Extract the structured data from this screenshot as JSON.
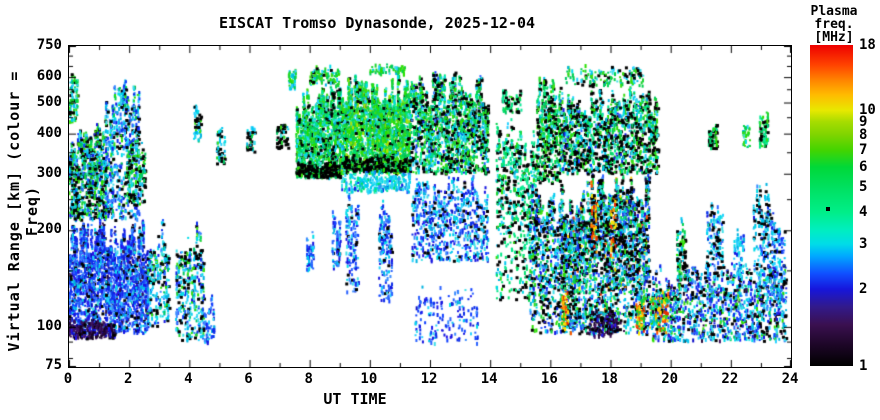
{
  "title": "EISCAT Tromso Dynasonde, 2025-12-04",
  "axes": {
    "xlabel": "UT TIME",
    "ylabel": "Virtual Range [km] (colour = Freq)",
    "x": {
      "min": 0,
      "max": 24,
      "major": [
        0,
        2,
        4,
        6,
        8,
        10,
        12,
        14,
        16,
        18,
        20,
        22,
        24
      ],
      "minor": [
        1,
        3,
        5,
        7,
        9,
        11,
        13,
        15,
        17,
        19,
        21,
        23
      ]
    },
    "y": {
      "min": 75,
      "max": 750,
      "scale": "log",
      "major": [
        750,
        600,
        500,
        400,
        300,
        200,
        100,
        75
      ],
      "minor": [
        80,
        90,
        150,
        250,
        350,
        450,
        550,
        650,
        700
      ]
    }
  },
  "colorbar": {
    "title_line1": "Plasma freq.",
    "title_line2": "[MHz]",
    "min": 1,
    "max": 18,
    "scale": "log",
    "ticks": [
      18,
      10,
      9,
      8,
      7,
      6,
      5,
      4,
      3,
      2,
      1
    ],
    "stops": [
      {
        "v": 1.0,
        "c": "#000000"
      },
      {
        "v": 1.2,
        "c": "#1c0626"
      },
      {
        "v": 1.45,
        "c": "#3a1050"
      },
      {
        "v": 1.7,
        "c": "#321a8a"
      },
      {
        "v": 2.0,
        "c": "#1616dc"
      },
      {
        "v": 2.3,
        "c": "#1050ff"
      },
      {
        "v": 2.7,
        "c": "#00aaff"
      },
      {
        "v": 3.0,
        "c": "#00dce8"
      },
      {
        "v": 3.4,
        "c": "#00eec0"
      },
      {
        "v": 4.0,
        "c": "#00ee88"
      },
      {
        "v": 5.0,
        "c": "#00e060"
      },
      {
        "v": 6.0,
        "c": "#00d838"
      },
      {
        "v": 7.0,
        "c": "#44d400"
      },
      {
        "v": 8.0,
        "c": "#7ed400"
      },
      {
        "v": 9.0,
        "c": "#a6dc00"
      },
      {
        "v": 10.0,
        "c": "#e8e800"
      },
      {
        "v": 11.5,
        "c": "#ffbb00"
      },
      {
        "v": 13.0,
        "c": "#ff8800"
      },
      {
        "v": 15.0,
        "c": "#ff4400"
      },
      {
        "v": 18.0,
        "c": "#ee0000"
      }
    ],
    "marker": {
      "v": 4.1,
      "color": "#000000"
    }
  },
  "chart_data": {
    "type": "scatter",
    "x_unit": "UT hours",
    "y_unit": "km virtual range (log scale 75-750)",
    "color_unit": "plasma frequency MHz (log scale 1-18)",
    "summary": [
      "Dense night-time E/F echoes 00-03 UT, 95-620 km, mostly 1.5-4 MHz (blue/cyan) with black overplot dots 200-430 km",
      "Sparse echoes 03-07 UT near 100-215 km and isolated patches 320-510 km",
      "Daytime F-layer green canopy (5-7 MHz) 07:30-11:20 UT between 290 and 660 km with black dot chain along 300-340 km lower edge",
      "Mixed green/cyan/black columns 11:20-16:20 UT, 100-630 km with blue lower fringe",
      "Very dense disturbed period 16:20-19:30 UT, 90-650 km, including orange/red patches (10-15 MHz) near 100-300 km",
      "Evening E-region band 19:30-23:50 UT at 90-160 km (blue/cyan) with sporadic cyan/green columns up to 480 km"
    ],
    "palettes": {
      "blue": [
        "#1616e0",
        "#1040ff",
        "#2a62ff",
        "#0b2ce8",
        "#3b8cff"
      ],
      "deepblue": [
        "#0d0dc8",
        "#2a14e8",
        "#1c1cf0"
      ],
      "cyan": [
        "#00c8f0",
        "#00dce8",
        "#28d2ff",
        "#00b4e0",
        "#40e0e8"
      ],
      "green": [
        "#00d24b",
        "#1ed433",
        "#3cdc14",
        "#00c862",
        "#28e000"
      ],
      "spring": [
        "#00e887",
        "#00e06e",
        "#10ea9a"
      ],
      "yellowgreen": [
        "#8ade00",
        "#b0e400"
      ],
      "warm": [
        "#ffd000",
        "#ff9800",
        "#ff5000",
        "#e82800",
        "#ffe800"
      ],
      "dark": [
        "#24063a",
        "#38104e",
        "#160422",
        "#401464"
      ],
      "black": [
        "#000000"
      ]
    },
    "clusters": [
      {
        "t": [
          0.0,
          2.65
        ],
        "r": [
          95,
          215
        ],
        "n": 2400,
        "mix": {
          "blue": 62,
          "cyan": 16,
          "deepblue": 10,
          "dark": 6,
          "black": 6
        }
      },
      {
        "t": [
          0.0,
          1.55
        ],
        "r": [
          92,
          106
        ],
        "n": 260,
        "mix": {
          "dark": 70,
          "deepblue": 20,
          "black": 10
        }
      },
      {
        "t": [
          0.0,
          1.25
        ],
        "r": [
          215,
          430
        ],
        "n": 850,
        "mix": {
          "green": 32,
          "cyan": 28,
          "black": 26,
          "blue": 14
        }
      },
      {
        "t": [
          0.0,
          0.3
        ],
        "r": [
          430,
          630
        ],
        "n": 90,
        "mix": {
          "green": 55,
          "cyan": 35,
          "black": 10
        }
      },
      {
        "t": [
          1.2,
          2.35
        ],
        "r": [
          215,
          620
        ],
        "n": 650,
        "mix": {
          "blue": 40,
          "cyan": 34,
          "black": 12,
          "green": 14
        }
      },
      {
        "t": [
          1.9,
          2.55
        ],
        "r": [
          240,
          390
        ],
        "n": 170,
        "mix": {
          "green": 40,
          "cyan": 25,
          "black": 35
        }
      },
      {
        "t": [
          2.6,
          3.35
        ],
        "r": [
          100,
          215
        ],
        "n": 260,
        "mix": {
          "cyan": 45,
          "black": 20,
          "blue": 20,
          "green": 15
        }
      },
      {
        "t": [
          3.55,
          4.5
        ],
        "r": [
          90,
          215
        ],
        "n": 360,
        "mix": {
          "cyan": 35,
          "green": 25,
          "black": 20,
          "blue": 20
        }
      },
      {
        "t": [
          4.5,
          4.85
        ],
        "r": [
          88,
          130
        ],
        "n": 60,
        "mix": {
          "blue": 70,
          "cyan": 30
        }
      },
      {
        "t": [
          4.15,
          4.4
        ],
        "r": [
          380,
          510
        ],
        "n": 55,
        "mix": {
          "cyan": 50,
          "black": 35,
          "green": 15
        }
      },
      {
        "t": [
          4.9,
          5.2
        ],
        "r": [
          320,
          430
        ],
        "n": 55,
        "mix": {
          "cyan": 55,
          "black": 30,
          "green": 15
        }
      },
      {
        "t": [
          5.9,
          6.2
        ],
        "r": [
          350,
          430
        ],
        "n": 40,
        "mix": {
          "cyan": 55,
          "black": 30,
          "green": 15
        }
      },
      {
        "t": [
          6.9,
          7.3
        ],
        "r": [
          360,
          450
        ],
        "n": 55,
        "mix": {
          "black": 45,
          "cyan": 40,
          "green": 15
        }
      },
      {
        "t": [
          7.3,
          7.55
        ],
        "r": [
          550,
          650
        ],
        "n": 45,
        "mix": {
          "green": 60,
          "cyan": 40
        }
      },
      {
        "t": [
          7.55,
          9.05
        ],
        "r": [
          290,
          560
        ],
        "n": 1350,
        "mix": {
          "green": 52,
          "spring": 18,
          "cyan": 20,
          "black": 10
        }
      },
      {
        "t": [
          7.55,
          9.05
        ],
        "r": [
          292,
          330
        ],
        "n": 200,
        "mix": {
          "black": 75,
          "green": 25
        }
      },
      {
        "t": [
          8.0,
          9.0
        ],
        "r": [
          560,
          655
        ],
        "n": 110,
        "mix": {
          "green": 70,
          "cyan": 20,
          "black": 10
        }
      },
      {
        "t": [
          7.9,
          8.15
        ],
        "r": [
          150,
          205
        ],
        "n": 55,
        "mix": {
          "blue": 60,
          "cyan": 40
        }
      },
      {
        "t": [
          8.75,
          9.05
        ],
        "r": [
          150,
          235
        ],
        "n": 80,
        "mix": {
          "blue": 65,
          "cyan": 25,
          "black": 10
        }
      },
      {
        "t": [
          9.05,
          11.35
        ],
        "r": [
          300,
          610
        ],
        "n": 2400,
        "mix": {
          "green": 58,
          "spring": 12,
          "yellowgreen": 8,
          "cyan": 16,
          "black": 6
        }
      },
      {
        "t": [
          9.05,
          11.35
        ],
        "r": [
          305,
          345
        ],
        "n": 240,
        "mix": {
          "black": 70,
          "green": 30
        }
      },
      {
        "t": [
          9.05,
          11.35
        ],
        "r": [
          262,
          305
        ],
        "n": 280,
        "mix": {
          "cyan": 70,
          "spring": 20,
          "blue": 10
        }
      },
      {
        "t": [
          9.2,
          9.65
        ],
        "r": [
          128,
          262
        ],
        "n": 150,
        "mix": {
          "blue": 62,
          "cyan": 28,
          "black": 10
        }
      },
      {
        "t": [
          10.3,
          10.75
        ],
        "r": [
          120,
          262
        ],
        "n": 170,
        "mix": {
          "blue": 60,
          "cyan": 30,
          "black": 10
        }
      },
      {
        "t": [
          10.0,
          11.25
        ],
        "r": [
          610,
          660
        ],
        "n": 70,
        "mix": {
          "green": 75,
          "cyan": 25
        }
      },
      {
        "t": [
          11.35,
          13.95
        ],
        "r": [
          300,
          625
        ],
        "n": 1700,
        "mix": {
          "green": 34,
          "cyan": 24,
          "spring": 14,
          "black": 22,
          "blue": 6
        }
      },
      {
        "t": [
          11.4,
          13.95
        ],
        "r": [
          160,
          300
        ],
        "n": 750,
        "mix": {
          "cyan": 38,
          "blue": 44,
          "black": 10,
          "deepblue": 8
        }
      },
      {
        "t": [
          11.5,
          13.6
        ],
        "r": [
          88,
          135
        ],
        "n": 160,
        "mix": {
          "blue": 70,
          "cyan": 20,
          "deepblue": 10
        }
      },
      {
        "t": [
          14.2,
          15.55
        ],
        "r": [
          120,
          460
        ],
        "n": 650,
        "mix": {
          "spring": 36,
          "cyan": 20,
          "black": 30,
          "green": 14
        }
      },
      {
        "t": [
          14.4,
          15.05
        ],
        "r": [
          460,
          560
        ],
        "n": 70,
        "mix": {
          "spring": 50,
          "green": 25,
          "black": 25
        }
      },
      {
        "t": [
          15.55,
          16.35
        ],
        "r": [
          280,
          630
        ],
        "n": 480,
        "mix": {
          "green": 40,
          "spring": 15,
          "black": 30,
          "cyan": 15
        }
      },
      {
        "t": [
          15.3,
          16.35
        ],
        "r": [
          95,
          280
        ],
        "n": 550,
        "mix": {
          "cyan": 30,
          "blue": 25,
          "black": 25,
          "green": 20
        }
      },
      {
        "t": [
          16.35,
          19.3
        ],
        "r": [
          95,
          300
        ],
        "n": 2700,
        "mix": {
          "cyan": 28,
          "blue": 20,
          "black": 26,
          "green": 14,
          "spring": 6,
          "warm": 3,
          "dark": 3
        }
      },
      {
        "t": [
          17.3,
          18.25
        ],
        "r": [
          93,
          115
        ],
        "n": 140,
        "mix": {
          "dark": 65,
          "black": 20,
          "deepblue": 15
        }
      },
      {
        "t": [
          16.35,
          16.6
        ],
        "r": [
          98,
          145
        ],
        "n": 60,
        "mix": {
          "warm": 75,
          "green": 25
        }
      },
      {
        "t": [
          17.35,
          17.55
        ],
        "r": [
          170,
          300
        ],
        "n": 50,
        "mix": {
          "warm": 80,
          "black": 20
        }
      },
      {
        "t": [
          18.0,
          18.2
        ],
        "r": [
          150,
          260
        ],
        "n": 40,
        "mix": {
          "warm": 75,
          "black": 25
        }
      },
      {
        "t": [
          18.85,
          19.15
        ],
        "r": [
          95,
          130
        ],
        "n": 60,
        "mix": {
          "warm": 70,
          "green": 30
        }
      },
      {
        "t": [
          19.3,
          19.65
        ],
        "r": [
          98,
          135
        ],
        "n": 80,
        "mix": {
          "green": 55,
          "warm": 25,
          "cyan": 20
        }
      },
      {
        "t": [
          16.35,
          19.25
        ],
        "r": [
          300,
          560
        ],
        "n": 1250,
        "mix": {
          "green": 30,
          "cyan": 24,
          "black": 30,
          "spring": 10,
          "blue": 6
        }
      },
      {
        "t": [
          16.5,
          19.1
        ],
        "r": [
          560,
          655
        ],
        "n": 140,
        "mix": {
          "green": 55,
          "cyan": 25,
          "black": 20
        }
      },
      {
        "t": [
          19.25,
          19.6
        ],
        "r": [
          300,
          560
        ],
        "n": 170,
        "mix": {
          "green": 45,
          "black": 35,
          "cyan": 20
        }
      },
      {
        "t": [
          19.4,
          23.85
        ],
        "r": [
          90,
          160
        ],
        "n": 1300,
        "mix": {
          "cyan": 34,
          "blue": 28,
          "black": 14,
          "green": 12,
          "dark": 6,
          "deepblue": 6
        }
      },
      {
        "t": [
          19.5,
          19.95
        ],
        "r": [
          95,
          130
        ],
        "n": 70,
        "mix": {
          "warm": 65,
          "green": 35
        }
      },
      {
        "t": [
          20.2,
          20.5
        ],
        "r": [
          140,
          235
        ],
        "n": 90,
        "mix": {
          "green": 45,
          "black": 30,
          "cyan": 25
        }
      },
      {
        "t": [
          21.2,
          21.75
        ],
        "r": [
          140,
          270
        ],
        "n": 150,
        "mix": {
          "cyan": 55,
          "black": 25,
          "blue": 20
        }
      },
      {
        "t": [
          22.1,
          22.45
        ],
        "r": [
          140,
          205
        ],
        "n": 70,
        "mix": {
          "cyan": 70,
          "blue": 30
        }
      },
      {
        "t": [
          22.75,
          23.35
        ],
        "r": [
          130,
          285
        ],
        "n": 190,
        "mix": {
          "cyan": 60,
          "blue": 20,
          "black": 20
        }
      },
      {
        "t": [
          23.35,
          23.8
        ],
        "r": [
          120,
          235
        ],
        "n": 150,
        "mix": {
          "cyan": 55,
          "blue": 35,
          "black": 10
        }
      },
      {
        "t": [
          21.25,
          21.55
        ],
        "r": [
          360,
          430
        ],
        "n": 70,
        "mix": {
          "spring": 45,
          "black": 35,
          "green": 20
        }
      },
      {
        "t": [
          22.4,
          22.65
        ],
        "r": [
          360,
          460
        ],
        "n": 35,
        "mix": {
          "green": 70,
          "cyan": 30
        }
      },
      {
        "t": [
          22.95,
          23.25
        ],
        "r": [
          360,
          480
        ],
        "n": 80,
        "mix": {
          "spring": 45,
          "black": 30,
          "green": 25
        }
      }
    ]
  }
}
